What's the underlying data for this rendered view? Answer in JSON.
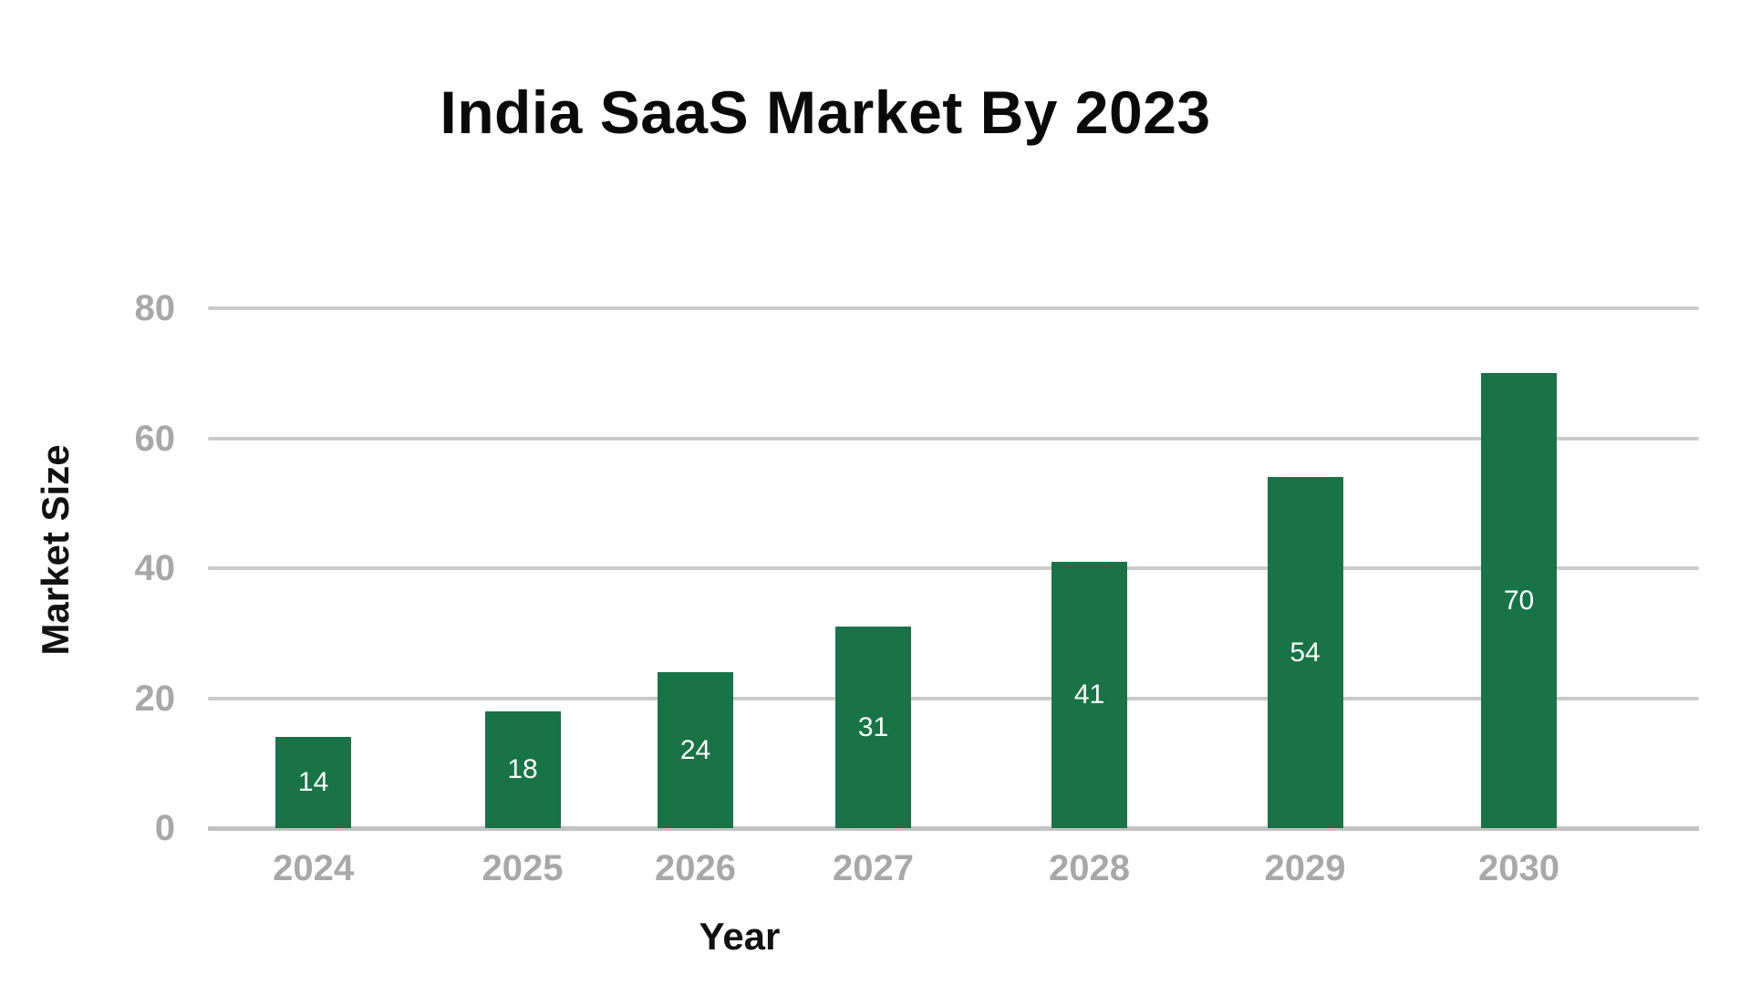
{
  "chart_data": {
    "type": "bar",
    "title": "India SaaS Market By 2023",
    "xlabel": "Year",
    "ylabel": "Market Size",
    "categories": [
      "2024",
      "2025",
      "2026",
      "2027",
      "2028",
      "2029",
      "2030"
    ],
    "values": [
      14,
      18,
      24,
      31,
      41,
      54,
      70
    ],
    "bar_labels": [
      "14",
      "18",
      "24",
      "31",
      "41",
      "54",
      "70"
    ],
    "yticks": [
      0,
      20,
      40,
      60,
      80
    ],
    "ylim": [
      0,
      80
    ],
    "grid": "horizontal-gridlines-on",
    "legend_position": "none",
    "colors": {
      "bar": "#187447",
      "bar_value_label": "#ffffff",
      "tick_labels": "#a8a8a8",
      "gridline": "#cacaca",
      "axis_line": "#c2c2c2",
      "title": "#0a0a0a",
      "axis_titles": "#111111",
      "background": "#ffffff"
    }
  }
}
